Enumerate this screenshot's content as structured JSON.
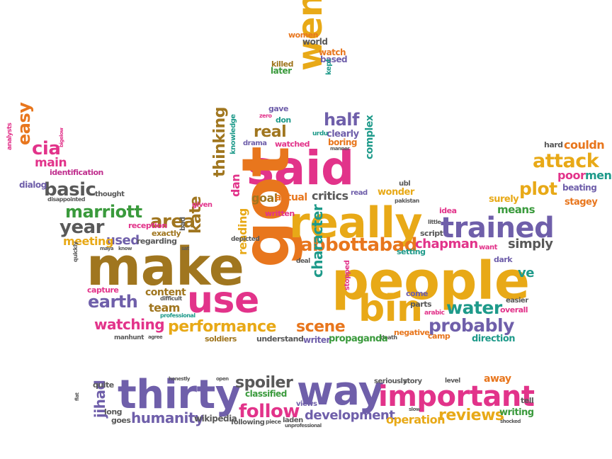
{
  "colors": {
    "pink": "#e2338a",
    "orange": "#e8761d",
    "gold": "#e8a917",
    "purple": "#6f5faa",
    "green": "#3a9a3c",
    "teal": "#1e9a8a",
    "brown": "#a0761f",
    "gray": "#595959",
    "olive": "#7f8a1e",
    "magenta": "#c02f8e",
    "red": "#cf2a33"
  },
  "words": [
    {
      "text": "said",
      "color": "pink"
    },
    {
      "text": "got",
      "color": "orange"
    },
    {
      "text": "make",
      "color": "brown"
    },
    {
      "text": "people",
      "color": "gold"
    },
    {
      "text": "really",
      "color": "gold"
    },
    {
      "text": "use",
      "color": "pink"
    },
    {
      "text": "went",
      "color": "gold"
    },
    {
      "text": "bin",
      "color": "gold"
    },
    {
      "text": "trained",
      "color": "purple"
    },
    {
      "text": "attack",
      "color": "gold"
    },
    {
      "text": "plot",
      "color": "gold"
    },
    {
      "text": "probably",
      "color": "purple"
    },
    {
      "text": "water",
      "color": "teal"
    },
    {
      "text": "performance",
      "color": "gold"
    },
    {
      "text": "watching",
      "color": "pink"
    },
    {
      "text": "scene",
      "color": "orange"
    },
    {
      "text": "abbottabad",
      "color": "orange"
    },
    {
      "text": "area",
      "color": "brown"
    },
    {
      "text": "thinking",
      "color": "brown"
    },
    {
      "text": "kate",
      "color": "brown"
    },
    {
      "text": "earth",
      "color": "purple"
    },
    {
      "text": "marriott",
      "color": "green"
    },
    {
      "text": "year",
      "color": "gray"
    },
    {
      "text": "basic",
      "color": "gray"
    },
    {
      "text": "easy",
      "color": "orange"
    },
    {
      "text": "cia",
      "color": "pink"
    },
    {
      "text": "main",
      "color": "pink"
    },
    {
      "text": "half",
      "color": "purple"
    },
    {
      "text": "real",
      "color": "brown"
    },
    {
      "text": "character",
      "color": "teal"
    },
    {
      "text": "chapman",
      "color": "pink"
    },
    {
      "text": "simply",
      "color": "gray"
    },
    {
      "text": "ve",
      "color": "teal"
    },
    {
      "text": "critics",
      "color": "gray"
    },
    {
      "text": "goal",
      "color": "brown"
    },
    {
      "text": "actual",
      "color": "orange"
    },
    {
      "text": "used",
      "color": "purple"
    },
    {
      "text": "meeting",
      "color": "gold"
    },
    {
      "text": "team",
      "color": "brown"
    },
    {
      "text": "content",
      "color": "brown"
    },
    {
      "text": "reading",
      "color": "gold"
    },
    {
      "text": "dan",
      "color": "pink"
    },
    {
      "text": "complex",
      "color": "teal"
    },
    {
      "text": "couldn",
      "color": "orange"
    },
    {
      "text": "poor",
      "color": "pink"
    },
    {
      "text": "men",
      "color": "teal"
    },
    {
      "text": "means",
      "color": "green"
    },
    {
      "text": "stagey",
      "color": "orange"
    },
    {
      "text": "beating",
      "color": "purple"
    },
    {
      "text": "hard",
      "color": "gray"
    },
    {
      "text": "identification",
      "color": "magenta"
    },
    {
      "text": "dialog",
      "color": "purple"
    },
    {
      "text": "analysts",
      "color": "pink"
    },
    {
      "text": "bigelow",
      "color": "pink"
    },
    {
      "text": "disappointed",
      "color": "gray"
    },
    {
      "text": "thought",
      "color": "gray"
    },
    {
      "text": "reception",
      "color": "pink"
    },
    {
      "text": "exactly",
      "color": "brown"
    },
    {
      "text": "regarding",
      "color": "gray"
    },
    {
      "text": "given",
      "color": "pink"
    },
    {
      "text": "bad",
      "color": "gray"
    },
    {
      "text": "knowledge",
      "color": "teal"
    },
    {
      "text": "written",
      "color": "pink"
    },
    {
      "text": "depicted",
      "color": "gray"
    },
    {
      "text": "drama",
      "color": "purple"
    },
    {
      "text": "watched",
      "color": "pink"
    },
    {
      "text": "boring",
      "color": "orange"
    },
    {
      "text": "clearly",
      "color": "purple"
    },
    {
      "text": "urdu",
      "color": "teal"
    },
    {
      "text": "manner",
      "color": "gray"
    },
    {
      "text": "don",
      "color": "teal"
    },
    {
      "text": "gave",
      "color": "purple"
    },
    {
      "text": "zero",
      "color": "pink"
    },
    {
      "text": "women",
      "color": "orange"
    },
    {
      "text": "world",
      "color": "gray"
    },
    {
      "text": "watch",
      "color": "orange"
    },
    {
      "text": "based",
      "color": "purple"
    },
    {
      "text": "killed",
      "color": "brown"
    },
    {
      "text": "later",
      "color": "green"
    },
    {
      "text": "kept",
      "color": "teal"
    },
    {
      "text": "wonder",
      "color": "gold"
    },
    {
      "text": "read",
      "color": "purple"
    },
    {
      "text": "ubl",
      "color": "gray"
    },
    {
      "text": "pakistan",
      "color": "gray"
    },
    {
      "text": "little",
      "color": "gray"
    },
    {
      "text": "idea",
      "color": "pink"
    },
    {
      "text": "surely",
      "color": "gold"
    },
    {
      "text": "script",
      "color": "gray"
    },
    {
      "text": "setting",
      "color": "teal"
    },
    {
      "text": "want",
      "color": "pink"
    },
    {
      "text": "dark",
      "color": "purple"
    },
    {
      "text": "easier",
      "color": "gray"
    },
    {
      "text": "overall",
      "color": "pink"
    },
    {
      "text": "camp",
      "color": "orange"
    },
    {
      "text": "direction",
      "color": "teal"
    },
    {
      "text": "arabic",
      "color": "pink"
    },
    {
      "text": "come",
      "color": "purple"
    },
    {
      "text": "parts",
      "color": "gray"
    },
    {
      "text": "negative",
      "color": "orange"
    },
    {
      "text": "stopped",
      "color": "pink"
    },
    {
      "text": "death",
      "color": "gray"
    },
    {
      "text": "propaganda",
      "color": "green"
    },
    {
      "text": "writer",
      "color": "purple"
    },
    {
      "text": "understand",
      "color": "gray"
    },
    {
      "text": "soldiers",
      "color": "brown"
    },
    {
      "text": "deal",
      "color": "gray"
    },
    {
      "text": "capture",
      "color": "pink"
    },
    {
      "text": "difficult",
      "color": "gray"
    },
    {
      "text": "professional",
      "color": "teal"
    },
    {
      "text": "manhunt",
      "color": "gray"
    },
    {
      "text": "agree",
      "color": "gray"
    },
    {
      "text": "quickly",
      "color": "gray"
    },
    {
      "text": "maya",
      "color": "gray"
    },
    {
      "text": "know",
      "color": "gray"
    },
    {
      "text": "sat",
      "color": "gray"
    },
    {
      "text": "thirty",
      "color": "purple"
    },
    {
      "text": "way",
      "color": "purple"
    },
    {
      "text": "important",
      "color": "pink"
    },
    {
      "text": "spoiler",
      "color": "gray"
    },
    {
      "text": "follow",
      "color": "pink"
    },
    {
      "text": "humanity",
      "color": "purple"
    },
    {
      "text": "development",
      "color": "purple"
    },
    {
      "text": "reviews",
      "color": "gold"
    },
    {
      "text": "operation",
      "color": "gold"
    },
    {
      "text": "jihad",
      "color": "purple"
    },
    {
      "text": "wikipedia",
      "color": "gray"
    },
    {
      "text": "classified",
      "color": "green"
    },
    {
      "text": "following",
      "color": "gray"
    },
    {
      "text": "laden",
      "color": "gray"
    },
    {
      "text": "views",
      "color": "purple"
    },
    {
      "text": "story",
      "color": "gray"
    },
    {
      "text": "seriously",
      "color": "gray"
    },
    {
      "text": "level",
      "color": "gray"
    },
    {
      "text": "away",
      "color": "orange"
    },
    {
      "text": "tell",
      "color": "gray"
    },
    {
      "text": "writing",
      "color": "green"
    },
    {
      "text": "shocked",
      "color": "gray"
    },
    {
      "text": "quite",
      "color": "gray"
    },
    {
      "text": "long",
      "color": "gray"
    },
    {
      "text": "goes",
      "color": "gray"
    },
    {
      "text": "honestly",
      "color": "gray"
    },
    {
      "text": "open",
      "color": "gray"
    },
    {
      "text": "piece",
      "color": "gray"
    },
    {
      "text": "unprofessional",
      "color": "gray"
    },
    {
      "text": "slow",
      "color": "gray"
    },
    {
      "text": "flat",
      "color": "gray"
    }
  ]
}
